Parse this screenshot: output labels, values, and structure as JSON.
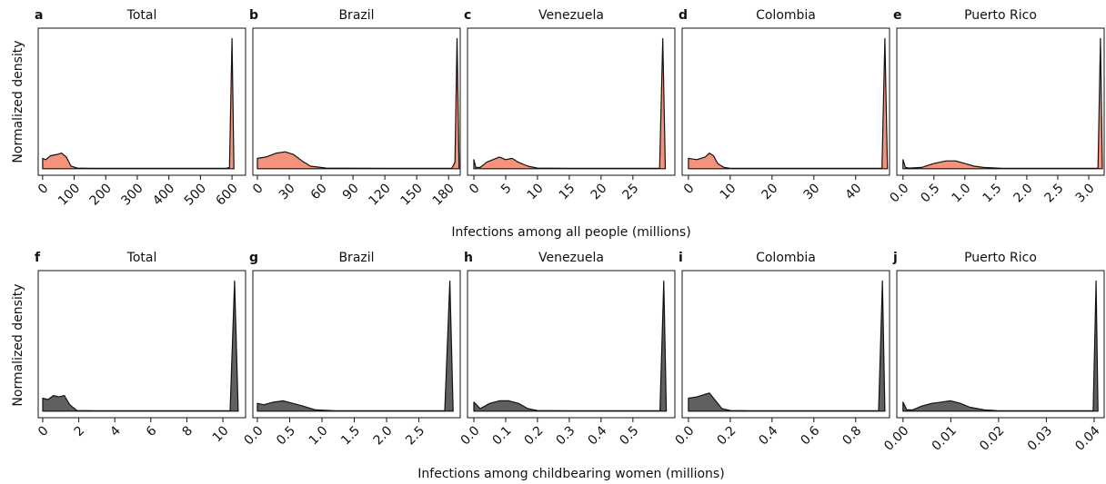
{
  "figure": {
    "ylabels": [
      "Normalized density",
      "Normalized density"
    ],
    "xlabels": [
      "Infections among all people (millions)",
      "Infections among childbearing women (millions)"
    ]
  },
  "chart_data": [
    {
      "type": "area",
      "panel": "a",
      "title": "Total",
      "color": "#f4937b",
      "x": [
        0,
        10,
        25,
        45,
        60,
        75,
        90,
        110,
        150,
        580,
        592,
        600,
        606
      ],
      "values": [
        0.08,
        0.07,
        0.1,
        0.11,
        0.12,
        0.09,
        0.02,
        0.005,
        0.003,
        0.003,
        0.01,
        1.0,
        0.0
      ],
      "xlim": [
        -14,
        643
      ],
      "ylim": [
        -0.05,
        1.08
      ],
      "xticks": [
        0,
        100,
        200,
        300,
        400,
        500,
        600
      ]
    },
    {
      "type": "area",
      "panel": "b",
      "title": "Brazil",
      "color": "#f4937b",
      "x": [
        0,
        8,
        18,
        26,
        34,
        42,
        50,
        65,
        120,
        183,
        186,
        188,
        190
      ],
      "values": [
        0.08,
        0.09,
        0.12,
        0.13,
        0.11,
        0.06,
        0.02,
        0.005,
        0.003,
        0.003,
        0.05,
        1.0,
        0.0
      ],
      "xlim": [
        -4.3,
        191
      ],
      "ylim": [
        -0.05,
        1.08
      ],
      "xticks": [
        0,
        30,
        60,
        90,
        120,
        150,
        180
      ]
    },
    {
      "type": "area",
      "panel": "c",
      "title": "Venezuela",
      "color": "#f4937b",
      "x": [
        0,
        0.3,
        1,
        2,
        3,
        4,
        5,
        6,
        7,
        8.5,
        10,
        15,
        29.2,
        29.7,
        30.1
      ],
      "values": [
        0.07,
        0.01,
        0.01,
        0.05,
        0.07,
        0.09,
        0.07,
        0.08,
        0.05,
        0.02,
        0.005,
        0.003,
        0.003,
        1.0,
        0.0
      ],
      "xlim": [
        -1,
        31.6
      ],
      "ylim": [
        -0.05,
        1.08
      ],
      "xticks": [
        0,
        5,
        10,
        15,
        20,
        25
      ]
    },
    {
      "type": "area",
      "panel": "d",
      "title": "Colombia",
      "color": "#f4937b",
      "x": [
        0,
        2,
        4,
        5,
        6,
        7,
        8.5,
        10,
        20,
        46.3,
        47,
        47.6
      ],
      "values": [
        0.08,
        0.07,
        0.09,
        0.12,
        0.1,
        0.04,
        0.01,
        0.004,
        0.003,
        0.003,
        1.0,
        0.0
      ],
      "xlim": [
        -1.5,
        48.1
      ],
      "ylim": [
        -0.05,
        1.08
      ],
      "xticks": [
        0,
        10,
        20,
        30,
        40
      ]
    },
    {
      "type": "area",
      "panel": "e",
      "title": "Puerto Rico",
      "color": "#f4937b",
      "x": [
        0,
        0.04,
        0.1,
        0.3,
        0.5,
        0.7,
        0.85,
        1.0,
        1.15,
        1.3,
        1.6,
        3.15,
        3.19,
        3.22
      ],
      "values": [
        0.07,
        0.01,
        0.005,
        0.01,
        0.04,
        0.06,
        0.06,
        0.04,
        0.02,
        0.01,
        0.004,
        0.003,
        1.0,
        0.0
      ],
      "xlim": [
        -0.1,
        3.25
      ],
      "ylim": [
        -0.05,
        1.08
      ],
      "xticks": [
        {
          "value": 0,
          "label": "0.0"
        },
        0.5,
        {
          "value": 1,
          "label": "1.0"
        },
        1.5,
        {
          "value": 2,
          "label": "2.0"
        },
        2.5,
        {
          "value": 3,
          "label": "3.0"
        }
      ]
    },
    {
      "type": "area",
      "panel": "f",
      "title": "Total",
      "color": "#606060",
      "x": [
        0,
        0.3,
        0.6,
        0.9,
        1.2,
        1.5,
        1.9,
        3,
        10.4,
        10.65,
        10.85
      ],
      "values": [
        0.1,
        0.09,
        0.12,
        0.11,
        0.12,
        0.05,
        0.005,
        0.003,
        0.003,
        1.0,
        0.0
      ],
      "xlim": [
        -0.25,
        11.26
      ],
      "ylim": [
        -0.05,
        1.08
      ],
      "xticks": [
        0,
        2,
        4,
        6,
        8,
        10
      ]
    },
    {
      "type": "area",
      "panel": "g",
      "title": "Brazil",
      "color": "#606060",
      "x": [
        0,
        0.1,
        0.25,
        0.4,
        0.55,
        0.7,
        0.9,
        1.2,
        2.9,
        2.98,
        3.03
      ],
      "values": [
        0.06,
        0.05,
        0.07,
        0.08,
        0.06,
        0.04,
        0.01,
        0.004,
        0.003,
        1.0,
        0.0
      ],
      "xlim": [
        -0.07,
        3.14
      ],
      "ylim": [
        -0.05,
        1.08
      ],
      "xticks": [
        {
          "value": 0,
          "label": "0.0"
        },
        0.5,
        {
          "value": 1,
          "label": "1.0"
        },
        1.5,
        {
          "value": 2,
          "label": "2.0"
        },
        2.5
      ]
    },
    {
      "type": "area",
      "panel": "h",
      "title": "Venezuela",
      "color": "#606060",
      "x": [
        0,
        0.02,
        0.05,
        0.08,
        0.11,
        0.14,
        0.17,
        0.2,
        0.3,
        0.585,
        0.597,
        0.605
      ],
      "values": [
        0.07,
        0.02,
        0.06,
        0.08,
        0.08,
        0.06,
        0.02,
        0.005,
        0.003,
        0.003,
        1.0,
        0.0
      ],
      "xlim": [
        -0.02,
        0.632
      ],
      "ylim": [
        -0.05,
        1.08
      ],
      "xticks": [
        {
          "value": 0,
          "label": "0.0"
        },
        0.1,
        0.2,
        0.3,
        0.4,
        0.5
      ]
    },
    {
      "type": "area",
      "panel": "i",
      "title": "Colombia",
      "color": "#606060",
      "x": [
        0,
        0.04,
        0.08,
        0.1,
        0.13,
        0.16,
        0.2,
        0.3,
        0.91,
        0.928,
        0.94
      ],
      "values": [
        0.1,
        0.11,
        0.13,
        0.14,
        0.08,
        0.02,
        0.005,
        0.003,
        0.003,
        1.0,
        0.0
      ],
      "xlim": [
        -0.03,
        0.962
      ],
      "ylim": [
        -0.05,
        1.08
      ],
      "xticks": [
        {
          "value": 0,
          "label": "0.0"
        },
        0.2,
        0.4,
        0.6,
        0.8
      ]
    },
    {
      "type": "area",
      "panel": "j",
      "title": "Puerto Rico",
      "color": "#606060",
      "x": [
        0,
        0.0008,
        0.002,
        0.004,
        0.006,
        0.008,
        0.01,
        0.012,
        0.014,
        0.017,
        0.02,
        0.0398,
        0.0404,
        0.0408
      ],
      "values": [
        0.07,
        0.01,
        0.01,
        0.04,
        0.06,
        0.07,
        0.08,
        0.06,
        0.03,
        0.01,
        0.004,
        0.003,
        1.0,
        0.0
      ],
      "xlim": [
        -0.0013,
        0.0421
      ],
      "ylim": [
        -0.05,
        1.08
      ],
      "xticks": [
        {
          "value": 0,
          "label": "0.00"
        },
        0.01,
        0.02,
        0.03,
        0.04
      ]
    }
  ]
}
